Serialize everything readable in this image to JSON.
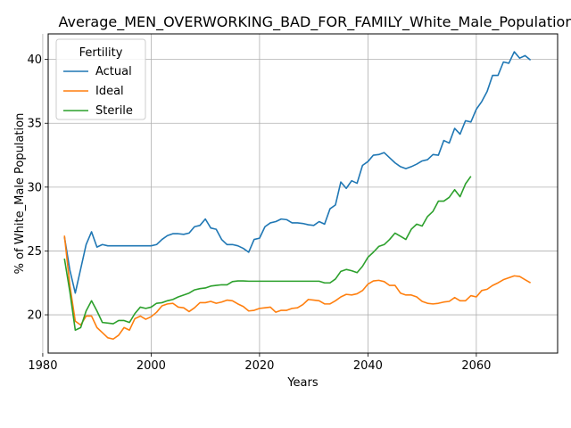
{
  "chart_data": {
    "type": "line",
    "title": "Average_MEN_OVERWORKING_BAD_FOR_FAMILY_White_Male_Population",
    "xlabel": "Years",
    "ylabel": "% of White_Male Population",
    "xlim": [
      1981,
      2075
    ],
    "ylim": [
      17,
      42
    ],
    "xticks": [
      1980,
      2000,
      2020,
      2040,
      2060
    ],
    "yticks": [
      20,
      25,
      30,
      35,
      40
    ],
    "grid": true,
    "legend": {
      "title": "Fertility",
      "placement": "top-left"
    },
    "series": [
      {
        "name": "Actual",
        "color": "#1f77b4",
        "points": [
          [
            1984,
            26.1
          ],
          [
            1985,
            23.5
          ],
          [
            1986,
            21.7
          ],
          [
            1987,
            23.6
          ],
          [
            1988,
            25.5
          ],
          [
            1989,
            26.5
          ],
          [
            1990,
            25.3
          ],
          [
            1991,
            25.5
          ],
          [
            1992,
            25.4
          ],
          [
            1993,
            25.4
          ],
          [
            1994,
            25.4
          ],
          [
            1995,
            25.4
          ],
          [
            1996,
            25.4
          ],
          [
            1997,
            25.4
          ],
          [
            1998,
            25.4
          ],
          [
            1999,
            25.4
          ],
          [
            2000,
            25.4
          ],
          [
            2001,
            25.5
          ],
          [
            2002,
            25.9
          ],
          [
            2003,
            26.2
          ],
          [
            2004,
            26.35
          ],
          [
            2005,
            26.35
          ],
          [
            2006,
            26.3
          ],
          [
            2007,
            26.4
          ],
          [
            2008,
            26.9
          ],
          [
            2009,
            27.0
          ],
          [
            2010,
            27.5
          ],
          [
            2011,
            26.8
          ],
          [
            2012,
            26.7
          ],
          [
            2013,
            25.9
          ],
          [
            2014,
            25.5
          ],
          [
            2015,
            25.5
          ],
          [
            2016,
            25.4
          ],
          [
            2017,
            25.2
          ],
          [
            2018,
            24.9
          ],
          [
            2019,
            25.9
          ],
          [
            2020,
            26.0
          ],
          [
            2021,
            26.9
          ],
          [
            2022,
            27.2
          ],
          [
            2023,
            27.3
          ],
          [
            2024,
            27.5
          ],
          [
            2025,
            27.45
          ],
          [
            2026,
            27.2
          ],
          [
            2027,
            27.2
          ],
          [
            2028,
            27.15
          ],
          [
            2029,
            27.05
          ],
          [
            2030,
            27.0
          ],
          [
            2031,
            27.3
          ],
          [
            2032,
            27.1
          ],
          [
            2033,
            28.3
          ],
          [
            2034,
            28.6
          ],
          [
            2035,
            30.4
          ],
          [
            2036,
            29.9
          ],
          [
            2037,
            30.5
          ],
          [
            2038,
            30.3
          ],
          [
            2039,
            31.7
          ],
          [
            2040,
            32.0
          ],
          [
            2041,
            32.5
          ],
          [
            2042,
            32.55
          ],
          [
            2043,
            32.7
          ],
          [
            2044,
            32.3
          ],
          [
            2045,
            31.9
          ],
          [
            2046,
            31.6
          ],
          [
            2047,
            31.45
          ],
          [
            2048,
            31.6
          ],
          [
            2049,
            31.8
          ],
          [
            2050,
            32.05
          ],
          [
            2051,
            32.15
          ],
          [
            2052,
            32.55
          ],
          [
            2053,
            32.5
          ],
          [
            2054,
            33.65
          ],
          [
            2055,
            33.45
          ],
          [
            2056,
            34.6
          ],
          [
            2057,
            34.15
          ],
          [
            2058,
            35.2
          ],
          [
            2059,
            35.1
          ],
          [
            2060,
            36.1
          ],
          [
            2061,
            36.7
          ],
          [
            2062,
            37.5
          ],
          [
            2063,
            38.75
          ],
          [
            2064,
            38.75
          ],
          [
            2065,
            39.8
          ],
          [
            2066,
            39.7
          ],
          [
            2067,
            40.6
          ],
          [
            2068,
            40.1
          ],
          [
            2069,
            40.3
          ],
          [
            2070,
            39.95
          ]
        ]
      },
      {
        "name": "Ideal",
        "color": "#ff7f0e",
        "points": [
          [
            1984,
            26.2
          ],
          [
            1985,
            22.3
          ],
          [
            1986,
            19.5
          ],
          [
            1987,
            19.2
          ],
          [
            1988,
            19.9
          ],
          [
            1989,
            19.9
          ],
          [
            1990,
            19.0
          ],
          [
            1991,
            18.6
          ],
          [
            1992,
            18.2
          ],
          [
            1993,
            18.1
          ],
          [
            1994,
            18.4
          ],
          [
            1995,
            19.0
          ],
          [
            1996,
            18.8
          ],
          [
            1997,
            19.7
          ],
          [
            1998,
            19.9
          ],
          [
            1999,
            19.65
          ],
          [
            2000,
            19.85
          ],
          [
            2001,
            20.2
          ],
          [
            2002,
            20.7
          ],
          [
            2003,
            20.85
          ],
          [
            2004,
            20.9
          ],
          [
            2005,
            20.6
          ],
          [
            2006,
            20.55
          ],
          [
            2007,
            20.25
          ],
          [
            2008,
            20.55
          ],
          [
            2009,
            20.95
          ],
          [
            2010,
            20.95
          ],
          [
            2011,
            21.05
          ],
          [
            2012,
            20.9
          ],
          [
            2013,
            21.0
          ],
          [
            2014,
            21.15
          ],
          [
            2015,
            21.1
          ],
          [
            2016,
            20.85
          ],
          [
            2017,
            20.65
          ],
          [
            2018,
            20.3
          ],
          [
            2019,
            20.35
          ],
          [
            2020,
            20.5
          ],
          [
            2021,
            20.55
          ],
          [
            2022,
            20.6
          ],
          [
            2023,
            20.2
          ],
          [
            2024,
            20.35
          ],
          [
            2025,
            20.35
          ],
          [
            2026,
            20.5
          ],
          [
            2027,
            20.55
          ],
          [
            2028,
            20.8
          ],
          [
            2029,
            21.2
          ],
          [
            2030,
            21.15
          ],
          [
            2031,
            21.1
          ],
          [
            2032,
            20.85
          ],
          [
            2033,
            20.85
          ],
          [
            2034,
            21.1
          ],
          [
            2035,
            21.4
          ],
          [
            2036,
            21.6
          ],
          [
            2037,
            21.55
          ],
          [
            2038,
            21.65
          ],
          [
            2039,
            21.9
          ],
          [
            2040,
            22.4
          ],
          [
            2041,
            22.65
          ],
          [
            2042,
            22.7
          ],
          [
            2043,
            22.6
          ],
          [
            2044,
            22.3
          ],
          [
            2045,
            22.3
          ],
          [
            2046,
            21.7
          ],
          [
            2047,
            21.55
          ],
          [
            2048,
            21.55
          ],
          [
            2049,
            21.4
          ],
          [
            2050,
            21.05
          ],
          [
            2051,
            20.9
          ],
          [
            2052,
            20.85
          ],
          [
            2053,
            20.9
          ],
          [
            2054,
            21.0
          ],
          [
            2055,
            21.05
          ],
          [
            2056,
            21.35
          ],
          [
            2057,
            21.1
          ],
          [
            2058,
            21.1
          ],
          [
            2059,
            21.5
          ],
          [
            2060,
            21.4
          ],
          [
            2061,
            21.9
          ],
          [
            2062,
            22.0
          ],
          [
            2063,
            22.3
          ],
          [
            2064,
            22.5
          ],
          [
            2065,
            22.75
          ],
          [
            2066,
            22.9
          ],
          [
            2067,
            23.05
          ],
          [
            2068,
            23.0
          ],
          [
            2069,
            22.75
          ],
          [
            2070,
            22.5
          ]
        ]
      },
      {
        "name": "Sterile",
        "color": "#2ca02c",
        "points": [
          [
            1984,
            24.4
          ],
          [
            1985,
            21.8
          ],
          [
            1986,
            18.8
          ],
          [
            1987,
            19.0
          ],
          [
            1988,
            20.3
          ],
          [
            1989,
            21.1
          ],
          [
            1990,
            20.3
          ],
          [
            1991,
            19.4
          ],
          [
            1992,
            19.35
          ],
          [
            1993,
            19.3
          ],
          [
            1994,
            19.55
          ],
          [
            1995,
            19.55
          ],
          [
            1996,
            19.4
          ],
          [
            1997,
            20.1
          ],
          [
            1998,
            20.6
          ],
          [
            1999,
            20.5
          ],
          [
            2000,
            20.6
          ],
          [
            2001,
            20.9
          ],
          [
            2002,
            20.95
          ],
          [
            2003,
            21.1
          ],
          [
            2004,
            21.2
          ],
          [
            2005,
            21.4
          ],
          [
            2006,
            21.55
          ],
          [
            2007,
            21.7
          ],
          [
            2008,
            21.95
          ],
          [
            2009,
            22.05
          ],
          [
            2010,
            22.1
          ],
          [
            2011,
            22.25
          ],
          [
            2012,
            22.3
          ],
          [
            2013,
            22.35
          ],
          [
            2014,
            22.35
          ],
          [
            2015,
            22.6
          ],
          [
            2016,
            22.65
          ],
          [
            2017,
            22.65
          ],
          [
            2018,
            22.63
          ],
          [
            2019,
            22.63
          ],
          [
            2020,
            22.63
          ],
          [
            2021,
            22.63
          ],
          [
            2022,
            22.63
          ],
          [
            2023,
            22.63
          ],
          [
            2024,
            22.63
          ],
          [
            2025,
            22.63
          ],
          [
            2026,
            22.63
          ],
          [
            2027,
            22.63
          ],
          [
            2028,
            22.63
          ],
          [
            2029,
            22.63
          ],
          [
            2030,
            22.63
          ],
          [
            2031,
            22.63
          ],
          [
            2032,
            22.5
          ],
          [
            2033,
            22.5
          ],
          [
            2034,
            22.8
          ],
          [
            2035,
            23.4
          ],
          [
            2036,
            23.55
          ],
          [
            2037,
            23.45
          ],
          [
            2038,
            23.3
          ],
          [
            2039,
            23.8
          ],
          [
            2040,
            24.5
          ],
          [
            2041,
            24.9
          ],
          [
            2042,
            25.35
          ],
          [
            2043,
            25.5
          ],
          [
            2044,
            25.9
          ],
          [
            2045,
            26.4
          ],
          [
            2046,
            26.15
          ],
          [
            2047,
            25.9
          ],
          [
            2048,
            26.7
          ],
          [
            2049,
            27.1
          ],
          [
            2050,
            26.95
          ],
          [
            2051,
            27.7
          ],
          [
            2052,
            28.1
          ],
          [
            2053,
            28.9
          ],
          [
            2054,
            28.9
          ],
          [
            2055,
            29.2
          ],
          [
            2056,
            29.8
          ],
          [
            2057,
            29.25
          ],
          [
            2058,
            30.25
          ],
          [
            2059,
            30.85
          ]
        ]
      }
    ]
  }
}
